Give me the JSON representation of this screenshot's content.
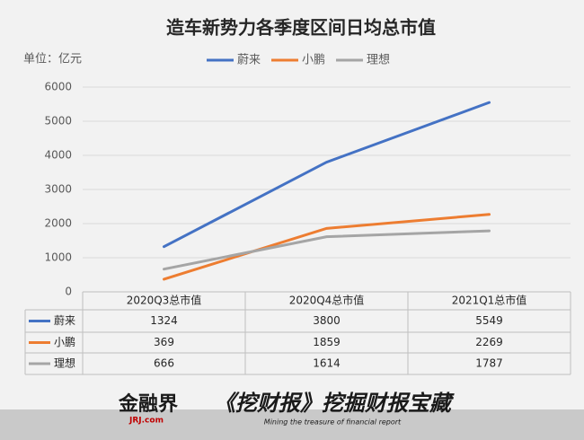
{
  "chart_data": {
    "type": "line",
    "title": "造车新势力各季度区间日均总市值",
    "unit_label": "单位：亿元",
    "categories": [
      "2020Q3总市值",
      "2020Q4总市值",
      "2021Q1总市值"
    ],
    "series": [
      {
        "name": "蔚来",
        "color": "#4472c4",
        "values": [
          1324,
          3800,
          5549
        ]
      },
      {
        "name": "小鹏",
        "color": "#ed7d31",
        "values": [
          369,
          1859,
          2269
        ]
      },
      {
        "name": "理想",
        "color": "#a5a5a5",
        "values": [
          666,
          1614,
          1787
        ]
      }
    ],
    "ylim": [
      0,
      6000
    ],
    "yticks": [
      0,
      1000,
      2000,
      3000,
      4000,
      5000,
      6000
    ],
    "grid": true,
    "legend": "top",
    "data_table": true
  },
  "footer": {
    "logo": "金融界",
    "logo_sub": "JRJ.com",
    "slogan": "《挖财报》挖掘财报宝藏",
    "slogan_sub": "Mining the treasure of financial report"
  }
}
